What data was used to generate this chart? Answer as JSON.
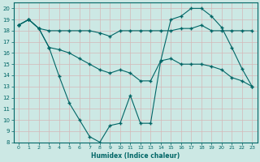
{
  "xlabel": "Humidex (Indice chaleur)",
  "bg_color": "#cce8e4",
  "grid_color": "#b8d8d4",
  "line_color": "#006666",
  "xlim": [
    -0.5,
    23.5
  ],
  "ylim": [
    8,
    20.5
  ],
  "xticks": [
    0,
    1,
    2,
    3,
    4,
    5,
    6,
    7,
    8,
    9,
    10,
    11,
    12,
    13,
    14,
    15,
    16,
    17,
    18,
    19,
    20,
    21,
    22,
    23
  ],
  "yticks": [
    8,
    9,
    10,
    11,
    12,
    13,
    14,
    15,
    16,
    17,
    18,
    19,
    20
  ],
  "series1_x": [
    0,
    1,
    2,
    3,
    4,
    5,
    6,
    7,
    8,
    9,
    10,
    11,
    12,
    13,
    14,
    15,
    16,
    17,
    18,
    19,
    20,
    21,
    22,
    23
  ],
  "series1_y": [
    18.5,
    19.0,
    18.2,
    18.0,
    18.0,
    18.0,
    18.0,
    18.0,
    17.8,
    17.5,
    18.0,
    18.0,
    18.0,
    18.0,
    18.0,
    18.0,
    18.2,
    18.2,
    18.5,
    18.0,
    18.0,
    18.0,
    18.0,
    18.0
  ],
  "series2_x": [
    0,
    1,
    2,
    3,
    4,
    5,
    6,
    7,
    8,
    9,
    10,
    11,
    12,
    13,
    14,
    15,
    16,
    17,
    18,
    19,
    20,
    21,
    22,
    23
  ],
  "series2_y": [
    18.5,
    19.0,
    18.2,
    16.5,
    16.3,
    16.0,
    15.5,
    15.0,
    14.5,
    14.2,
    14.5,
    14.2,
    13.5,
    13.5,
    15.3,
    15.5,
    15.0,
    15.0,
    15.0,
    14.8,
    14.5,
    13.8,
    13.5,
    13.0
  ],
  "series3_x": [
    0,
    1,
    2,
    3,
    4,
    5,
    6,
    7,
    8,
    9,
    10,
    11,
    12,
    13,
    14,
    15,
    16,
    17,
    18,
    19,
    20,
    21,
    22,
    23
  ],
  "series3_y": [
    18.5,
    19.0,
    18.2,
    16.5,
    13.9,
    11.5,
    10.0,
    8.5,
    8.0,
    9.5,
    9.7,
    12.2,
    9.7,
    9.7,
    15.3,
    19.0,
    19.3,
    20.0,
    20.0,
    19.3,
    18.3,
    16.5,
    14.6,
    13.0
  ]
}
